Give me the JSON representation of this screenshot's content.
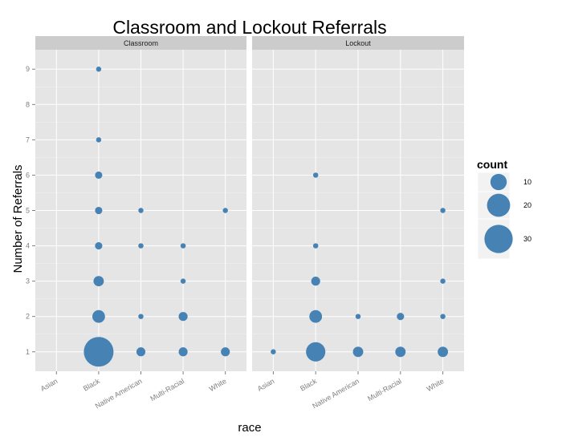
{
  "chart_data": {
    "type": "scatter",
    "title": "Classroom and Lockout Referrals",
    "xlabel": "race",
    "ylabel": "Number of Referrals",
    "categories": [
      "Asian",
      "Black",
      "Native American",
      "Multi-Racial",
      "White"
    ],
    "y_ticks": [
      "1",
      "2",
      "3",
      "4",
      "5",
      "6",
      "7",
      "8",
      "9"
    ],
    "ylim": [
      0.45,
      9.55
    ],
    "size_legend": {
      "title": "count",
      "breaks": [
        10,
        20,
        30
      ],
      "labels": [
        "10",
        "20",
        "30"
      ]
    },
    "point_color": "#4682B4",
    "panel_background": "#E5E5E5",
    "strip_background": "#CCCCCC",
    "grid": true,
    "legend_position": "right",
    "facets": [
      {
        "label": "Classroom",
        "points": [
          {
            "x": "Black",
            "y": 1,
            "count": 33
          },
          {
            "x": "Black",
            "y": 2,
            "count": 6
          },
          {
            "x": "Black",
            "y": 3,
            "count": 4
          },
          {
            "x": "Black",
            "y": 4,
            "count": 2
          },
          {
            "x": "Black",
            "y": 5,
            "count": 2
          },
          {
            "x": "Black",
            "y": 6,
            "count": 2
          },
          {
            "x": "Black",
            "y": 7,
            "count": 1
          },
          {
            "x": "Black",
            "y": 9,
            "count": 1
          },
          {
            "x": "Native American",
            "y": 1,
            "count": 3
          },
          {
            "x": "Native American",
            "y": 2,
            "count": 1
          },
          {
            "x": "Native American",
            "y": 4,
            "count": 1
          },
          {
            "x": "Native American",
            "y": 5,
            "count": 1
          },
          {
            "x": "Multi-Racial",
            "y": 1,
            "count": 3
          },
          {
            "x": "Multi-Racial",
            "y": 2,
            "count": 3
          },
          {
            "x": "Multi-Racial",
            "y": 3,
            "count": 1
          },
          {
            "x": "Multi-Racial",
            "y": 4,
            "count": 1
          },
          {
            "x": "White",
            "y": 1,
            "count": 3
          },
          {
            "x": "White",
            "y": 5,
            "count": 1
          }
        ]
      },
      {
        "label": "Lockout",
        "points": [
          {
            "x": "Asian",
            "y": 1,
            "count": 1
          },
          {
            "x": "Black",
            "y": 1,
            "count": 14
          },
          {
            "x": "Black",
            "y": 2,
            "count": 6
          },
          {
            "x": "Black",
            "y": 3,
            "count": 3
          },
          {
            "x": "Black",
            "y": 4,
            "count": 1
          },
          {
            "x": "Black",
            "y": 6,
            "count": 1
          },
          {
            "x": "Native American",
            "y": 1,
            "count": 4
          },
          {
            "x": "Native American",
            "y": 2,
            "count": 1
          },
          {
            "x": "Multi-Racial",
            "y": 1,
            "count": 4
          },
          {
            "x": "Multi-Racial",
            "y": 2,
            "count": 2
          },
          {
            "x": "White",
            "y": 1,
            "count": 4
          },
          {
            "x": "White",
            "y": 2,
            "count": 1
          },
          {
            "x": "White",
            "y": 3,
            "count": 1
          },
          {
            "x": "White",
            "y": 5,
            "count": 1
          }
        ]
      }
    ]
  }
}
